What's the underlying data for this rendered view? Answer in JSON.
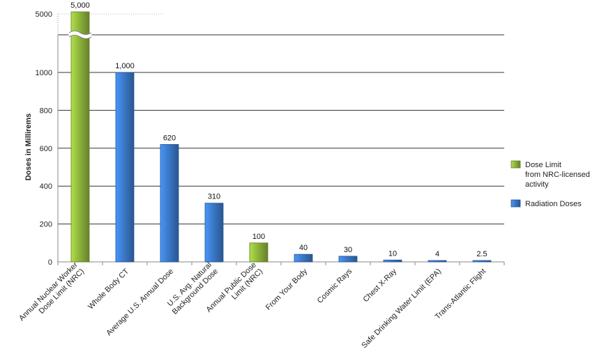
{
  "chart_data": {
    "type": "bar",
    "ylabel": "Doses in Millirems",
    "categories": [
      "Annual Nuclear Worker Dose Limit (NRC)",
      "Whole Body CT",
      "Average U.S. Annual Dose",
      "U.S. Avg. Natural Background Dose",
      "Annual Public Dose Limit (NRC)",
      "From Your Body",
      "Cosmic Rays",
      "Chest X-Ray",
      "Safe Drinking Water Limit (EPA)",
      "Trans-Atlantic Flight"
    ],
    "category_lines": [
      [
        "Annual Nuclear Worker",
        "Dose Limit (NRC)"
      ],
      [
        "Whole Body CT"
      ],
      [
        "Average U.S. Annual Dose"
      ],
      [
        "U.S. Avg. Natural",
        "Background Dose"
      ],
      [
        "Annual Public Dose",
        "Limit (NRC)"
      ],
      [
        "From Your Body"
      ],
      [
        "Cosmic Rays"
      ],
      [
        "Chest X-Ray"
      ],
      [
        "Safe Drinking Water Limit (EPA)"
      ],
      [
        "Trans-Atlantic Flight"
      ]
    ],
    "values": [
      5000,
      1000,
      620,
      310,
      100,
      40,
      30,
      10,
      4,
      2.5
    ],
    "data_labels": [
      "5,000",
      "1,000",
      "620",
      "310",
      "100",
      "40",
      "30",
      "10",
      "4",
      "2.5"
    ],
    "series_index": [
      0,
      1,
      1,
      1,
      0,
      1,
      1,
      1,
      1,
      1
    ],
    "series": [
      {
        "name": "Dose Limit from NRC-licensed activity",
        "legend_lines": [
          "Dose Limit",
          "from NRC-licensed",
          "activity"
        ],
        "color": "#8db33a"
      },
      {
        "name": "Radiation Doses",
        "legend_lines": [
          "Radiation Doses"
        ],
        "color": "#3a78c8"
      }
    ],
    "yticks": [
      0,
      200,
      400,
      600,
      800,
      1000
    ],
    "ytick_labels": [
      "0",
      "200",
      "400",
      "600",
      "800",
      "1000"
    ],
    "broken_axis": {
      "break_after": 1000,
      "upper_label": "5000",
      "upper_value": 5000
    },
    "ylim": [
      0,
      1000
    ],
    "grid": true,
    "legend_position": "right"
  }
}
